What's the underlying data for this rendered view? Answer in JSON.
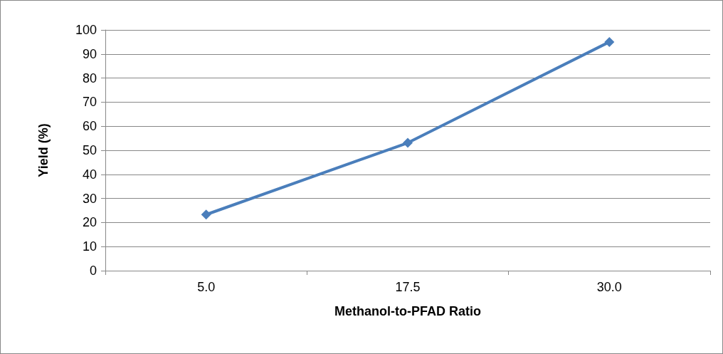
{
  "chart_data": {
    "type": "line",
    "xlabel": "Methanol-to-PFAD Ratio",
    "ylabel": "Yield (%)",
    "categories": [
      "5.0",
      "17.5",
      "30.0"
    ],
    "series": [
      {
        "color": "#4a7ebb",
        "values": [
          23.3,
          53.1,
          95
        ]
      }
    ],
    "ylim": [
      0,
      100
    ],
    "yticks": [
      0,
      10,
      20,
      30,
      40,
      50,
      60,
      70,
      80,
      90,
      100
    ],
    "grid": "y",
    "marker": "diamond",
    "line_style": "solid"
  }
}
